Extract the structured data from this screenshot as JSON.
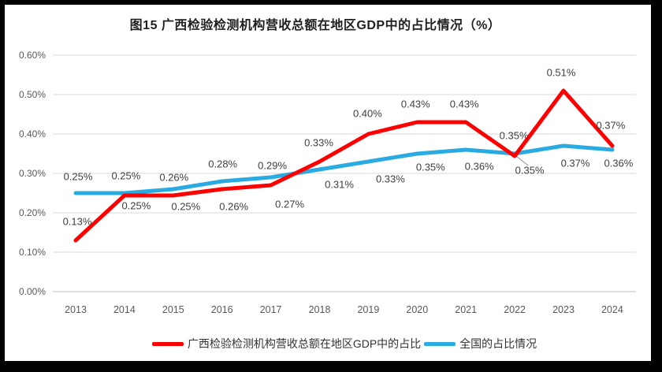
{
  "title": "图15 广西检验检测机构营收总额在地区GDP中的占比情况（%）",
  "chart_data": {
    "type": "line",
    "categories": [
      "2013",
      "2014",
      "2015",
      "2016",
      "2017",
      "2018",
      "2019",
      "2020",
      "2021",
      "2022",
      "2023",
      "2024"
    ],
    "series": [
      {
        "name": "广西检验检测机构营收总额在地区GDP中的占比",
        "color": "#FF0000",
        "values": [
          0.13,
          0.25,
          0.25,
          0.26,
          0.27,
          0.33,
          0.4,
          0.43,
          0.43,
          0.35,
          0.51,
          0.37
        ],
        "labels": [
          "0.13%",
          "0.25%",
          "0.25%",
          "0.26%",
          "0.27%",
          "0.33%",
          "0.40%",
          "0.43%",
          "0.43%",
          "0.35%",
          "0.51%",
          "0.37%"
        ]
      },
      {
        "name": "全国的占比情况",
        "color": "#29ABE2",
        "values": [
          0.25,
          0.25,
          0.26,
          0.28,
          0.29,
          0.31,
          0.33,
          0.35,
          0.36,
          0.35,
          0.37,
          0.36
        ],
        "labels": [
          "0.25%",
          "0.25%",
          "0.26%",
          "0.28%",
          "0.29%",
          "0.31%",
          "0.33%",
          "0.35%",
          "0.36%",
          "0.35%",
          "0.37%",
          "0.36%"
        ]
      }
    ],
    "ylabel": "",
    "xlabel": "",
    "ylim": [
      0,
      0.6
    ],
    "ytick_labels": [
      "0.00%",
      "0.10%",
      "0.20%",
      "0.30%",
      "0.40%",
      "0.50%",
      "0.60%"
    ],
    "grid": true,
    "legend_position": "bottom",
    "annotation": {
      "leader_line_year": "2022",
      "leader_line_series": "全国的占比情况",
      "leader_line_color": "#A6A6A6"
    }
  },
  "colors": {
    "frame": "#000000",
    "gridline": "#D9D9D9",
    "axis_line": "#BFBFBF",
    "axis_text": "#595959",
    "data_label_text": "#3F3F3F"
  }
}
